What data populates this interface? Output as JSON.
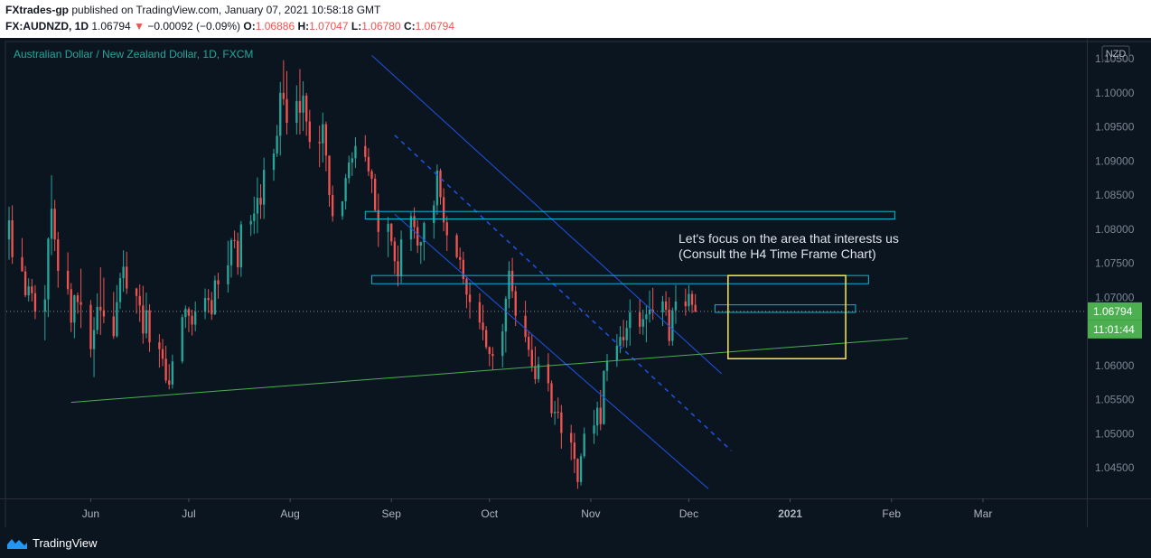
{
  "header": {
    "author": "FXtrades-gp",
    "published": "published on TradingView.com, January 07, 2021 10:58:18 GMT",
    "symbol": "FX:AUDNZD, 1D",
    "last": "1.06794",
    "change_arrow": "▼",
    "change": "−0.00092 (−0.09%)",
    "o_label": "O:",
    "o_val": "1.06886",
    "h_label": "H:",
    "h_val": "1.07047",
    "l_label": "L:",
    "l_val": "1.06780",
    "c_label": "C:",
    "c_val": "1.06794"
  },
  "chart_title": "Australian Dollar / New Zealand Dollar, 1D, FXCM",
  "footer": {
    "brand": "TradingView",
    "logo_icon": "tradingview-logo-icon"
  },
  "colors": {
    "background": "#0a1520",
    "bull": "#26a69a",
    "bear": "#ef5350",
    "channel": "#1e53e5",
    "trend": "#4caf50",
    "zone": "#00bcd4",
    "focus_box": "#ffeb3b"
  },
  "chart_data": {
    "type": "candlestick",
    "title": "Australian Dollar / New Zealand Dollar, 1D, FXCM",
    "currency_label": "NZD",
    "xlabel": "",
    "ylabel": "",
    "ylim": [
      1.0405,
      1.1074
    ],
    "x_ticks": [
      "Jun",
      "Jul",
      "Aug",
      "Sep",
      "Oct",
      "Nov",
      "Dec",
      "2021",
      "Feb",
      "Mar"
    ],
    "y_ticks": [
      "1.04500",
      "1.05000",
      "1.05500",
      "1.06000",
      "1.06500",
      "1.07000",
      "1.07500",
      "1.08000",
      "1.08500",
      "1.09000",
      "1.09500",
      "1.10000",
      "1.10500"
    ],
    "grid": false,
    "last_price": "1.06794",
    "countdown": "11:01:44",
    "annotation": [
      "Let's focus on the area that interests us",
      "(Consult the H4 Time Frame Chart)"
    ],
    "date_anchor": {
      "first_bar_date": "2020-05-07"
    },
    "candles": [
      [
        1.0785,
        1.0833,
        1.0755,
        1.0813
      ],
      [
        1.0813,
        1.0835,
        1.0749,
        1.0759
      ],
      [
        1.0759,
        1.0787,
        1.0738,
        1.0738
      ],
      [
        1.0738,
        1.0746,
        1.07,
        1.0703
      ],
      [
        1.0703,
        1.0728,
        1.0694,
        1.0716
      ],
      [
        1.0716,
        1.0727,
        1.0694,
        1.0706
      ],
      [
        1.0706,
        1.0718,
        1.0668,
        1.0679
      ],
      [
        1.0679,
        1.0718,
        1.0637,
        1.0697
      ],
      [
        1.0697,
        1.0788,
        1.0671,
        1.0786
      ],
      [
        1.0786,
        1.0879,
        1.0762,
        1.083
      ],
      [
        1.083,
        1.0843,
        1.0768,
        1.0785
      ],
      [
        1.0785,
        1.0796,
        1.0714,
        1.0739
      ],
      [
        1.0739,
        1.0766,
        1.0704,
        1.0712
      ],
      [
        1.0712,
        1.0721,
        1.0649,
        1.0663
      ],
      [
        1.0663,
        1.0704,
        1.064,
        1.0703
      ],
      [
        1.0703,
        1.0707,
        1.0676,
        1.0693
      ],
      [
        1.0693,
        1.0742,
        1.0655,
        1.0689
      ],
      [
        1.0689,
        1.0696,
        1.0612,
        1.0624
      ],
      [
        1.0624,
        1.0671,
        1.0583,
        1.0652
      ],
      [
        1.0652,
        1.0706,
        1.0646,
        1.0686
      ],
      [
        1.0686,
        1.0744,
        1.0645,
        1.0681
      ],
      [
        1.0681,
        1.0729,
        1.0662,
        1.0672
      ],
      [
        1.0672,
        1.0708,
        1.0639,
        1.0643
      ],
      [
        1.0643,
        1.0718,
        1.0641,
        1.0693
      ],
      [
        1.0693,
        1.0736,
        1.0683,
        1.0728
      ],
      [
        1.0728,
        1.0769,
        1.0708,
        1.0745
      ],
      [
        1.0745,
        1.0767,
        1.0705,
        1.0713
      ],
      [
        1.0713,
        1.0714,
        1.0676,
        1.0702
      ],
      [
        1.0702,
        1.0719,
        1.0664,
        1.0688
      ],
      [
        1.0688,
        1.0717,
        1.0632,
        1.0647
      ],
      [
        1.0647,
        1.0707,
        1.064,
        1.0681
      ],
      [
        1.0681,
        1.069,
        1.062,
        1.0634
      ],
      [
        1.0634,
        1.0646,
        1.0597,
        1.0624
      ],
      [
        1.0624,
        1.0639,
        1.0599,
        1.061
      ],
      [
        1.061,
        1.0629,
        1.0574,
        1.0578
      ],
      [
        1.0578,
        1.0602,
        1.0565,
        1.0572
      ],
      [
        1.0572,
        1.0616,
        1.0566,
        1.0606
      ],
      [
        1.0606,
        1.0675,
        1.0603,
        1.0671
      ],
      [
        1.0671,
        1.0688,
        1.0655,
        1.0683
      ],
      [
        1.0683,
        1.0686,
        1.0649,
        1.0673
      ],
      [
        1.0673,
        1.0682,
        1.0644,
        1.066
      ],
      [
        1.066,
        1.0694,
        1.065,
        1.0679
      ],
      [
        1.0679,
        1.0713,
        1.0668,
        1.0699
      ],
      [
        1.0699,
        1.0712,
        1.0677,
        1.0696
      ],
      [
        1.0696,
        1.0708,
        1.0667,
        1.0675
      ],
      [
        1.0675,
        1.0732,
        1.0674,
        1.0725
      ],
      [
        1.0725,
        1.0736,
        1.0698,
        1.0719
      ],
      [
        1.0719,
        1.0783,
        1.0707,
        1.0747
      ],
      [
        1.0747,
        1.0787,
        1.0729,
        1.0784
      ],
      [
        1.0784,
        1.0798,
        1.0772,
        1.0783
      ],
      [
        1.0783,
        1.0795,
        1.0733,
        1.0744
      ],
      [
        1.0744,
        1.0812,
        1.073,
        1.0807
      ],
      [
        1.0807,
        1.0821,
        1.079,
        1.0812
      ],
      [
        1.0812,
        1.0848,
        1.0793,
        1.0823
      ],
      [
        1.0823,
        1.0876,
        1.0794,
        1.0846
      ],
      [
        1.0846,
        1.0866,
        1.0815,
        1.0836
      ],
      [
        1.0836,
        1.0905,
        1.0815,
        1.0887
      ],
      [
        1.0887,
        1.0918,
        1.0871,
        1.0911
      ],
      [
        1.0911,
        1.0953,
        1.0906,
        1.0937
      ],
      [
        1.0937,
        1.1016,
        1.0908,
        1.1
      ],
      [
        1.1,
        1.1048,
        1.0982,
        1.0991
      ],
      [
        1.0991,
        1.1032,
        1.0939,
        1.0956
      ],
      [
        1.0956,
        1.1011,
        1.0939,
        1.0988
      ],
      [
        1.0988,
        1.1035,
        1.0939,
        1.0971
      ],
      [
        1.0971,
        1.1017,
        1.0944,
        1.0996
      ],
      [
        1.0996,
        1.1,
        1.0937,
        1.0958
      ],
      [
        1.0958,
        1.0975,
        1.0918,
        1.0928
      ],
      [
        1.0928,
        1.0952,
        1.0891,
        1.0926
      ],
      [
        1.0926,
        1.0971,
        1.0898,
        1.0954
      ],
      [
        1.0954,
        1.0958,
        1.0885,
        1.0908
      ],
      [
        1.0908,
        1.0908,
        1.0833,
        1.085
      ],
      [
        1.085,
        1.0864,
        1.0811,
        1.0819
      ],
      [
        1.0819,
        1.0841,
        1.0814,
        1.0841
      ],
      [
        1.0841,
        1.0881,
        1.0829,
        1.0875
      ],
      [
        1.0875,
        1.0908,
        1.0867,
        1.0898
      ],
      [
        1.0898,
        1.0913,
        1.0878,
        1.0904
      ],
      [
        1.0904,
        1.0935,
        1.089,
        1.0922
      ],
      [
        1.0922,
        1.0938,
        1.0899,
        1.0906
      ],
      [
        1.0906,
        1.0919,
        1.0878,
        1.0885
      ],
      [
        1.0885,
        1.0888,
        1.0853,
        1.0874
      ],
      [
        1.0874,
        1.0881,
        1.0825,
        1.0828
      ],
      [
        1.0828,
        1.0852,
        1.0774,
        1.0796
      ],
      [
        1.0796,
        1.0818,
        1.0759,
        1.0808
      ],
      [
        1.0808,
        1.0809,
        1.0776,
        1.0782
      ],
      [
        1.0782,
        1.0788,
        1.0734,
        1.0753
      ],
      [
        1.0753,
        1.0776,
        1.0716,
        1.0731
      ],
      [
        1.0731,
        1.0798,
        1.0721,
        1.0785
      ],
      [
        1.0785,
        1.0825,
        1.0768,
        1.0819
      ],
      [
        1.0819,
        1.0832,
        1.0786,
        1.0803
      ],
      [
        1.0803,
        1.0813,
        1.0765,
        1.0776
      ],
      [
        1.0776,
        1.0782,
        1.0749,
        1.0781
      ],
      [
        1.0781,
        1.0811,
        1.0754,
        1.0809
      ],
      [
        1.0809,
        1.0842,
        1.0786,
        1.0835
      ],
      [
        1.0835,
        1.0895,
        1.0821,
        1.0886
      ],
      [
        1.0886,
        1.0889,
        1.0836,
        1.0847
      ],
      [
        1.0847,
        1.086,
        1.0797,
        1.081
      ],
      [
        1.081,
        1.0819,
        1.0768,
        1.0791
      ],
      [
        1.0791,
        1.0794,
        1.0757,
        1.0759
      ],
      [
        1.0759,
        1.0773,
        1.0741,
        1.0755
      ],
      [
        1.0755,
        1.0767,
        1.0719,
        1.0727
      ],
      [
        1.0727,
        1.073,
        1.0684,
        1.0704
      ],
      [
        1.0704,
        1.0722,
        1.0669,
        1.0693
      ],
      [
        1.0693,
        1.0706,
        1.0653,
        1.0663
      ],
      [
        1.0663,
        1.0689,
        1.0637,
        1.0652
      ],
      [
        1.0652,
        1.0658,
        1.0624,
        1.0627
      ],
      [
        1.0627,
        1.0628,
        1.0599,
        1.0617
      ],
      [
        1.0617,
        1.0627,
        1.0594,
        1.0614
      ],
      [
        1.0614,
        1.0661,
        1.0597,
        1.065
      ],
      [
        1.065,
        1.0702,
        1.0619,
        1.0698
      ],
      [
        1.0698,
        1.0753,
        1.0684,
        1.0739
      ],
      [
        1.0739,
        1.0758,
        1.0699,
        1.0709
      ],
      [
        1.0709,
        1.0717,
        1.0658,
        1.0673
      ],
      [
        1.0673,
        1.0695,
        1.0634,
        1.0642
      ],
      [
        1.0642,
        1.0651,
        1.0613,
        1.0623
      ],
      [
        1.0623,
        1.0646,
        1.0591,
        1.0599
      ],
      [
        1.0599,
        1.0628,
        1.0573,
        1.058
      ],
      [
        1.058,
        1.0613,
        1.0575,
        1.0602
      ],
      [
        1.0602,
        1.0618,
        1.0562,
        1.0574
      ],
      [
        1.0574,
        1.0578,
        1.0524,
        1.053
      ],
      [
        1.053,
        1.0548,
        1.0513,
        1.0532
      ],
      [
        1.0532,
        1.0553,
        1.0522,
        1.0531
      ],
      [
        1.0531,
        1.0542,
        1.0478,
        1.0501
      ],
      [
        1.0501,
        1.0513,
        1.0461,
        1.0487
      ],
      [
        1.0487,
        1.0501,
        1.0442,
        1.0463
      ],
      [
        1.0463,
        1.0464,
        1.0419,
        1.0429
      ],
      [
        1.0429,
        1.0471,
        1.0424,
        1.0467
      ],
      [
        1.0467,
        1.0509,
        1.0464,
        1.05
      ],
      [
        1.05,
        1.0535,
        1.0485,
        1.0512
      ],
      [
        1.0512,
        1.0547,
        1.0497,
        1.0538
      ],
      [
        1.0538,
        1.0564,
        1.0505,
        1.0514
      ],
      [
        1.0514,
        1.0593,
        1.0513,
        1.0592
      ],
      [
        1.0592,
        1.0617,
        1.0577,
        1.0607
      ],
      [
        1.0607,
        1.0646,
        1.0598,
        1.0629
      ],
      [
        1.0629,
        1.0658,
        1.0618,
        1.0642
      ],
      [
        1.0642,
        1.0667,
        1.0627,
        1.0637
      ],
      [
        1.0637,
        1.0666,
        1.0626,
        1.0655
      ],
      [
        1.0655,
        1.0697,
        1.0629,
        1.0678
      ],
      [
        1.0678,
        1.0697,
        1.0646,
        1.0657
      ],
      [
        1.0657,
        1.0682,
        1.0645,
        1.0668
      ],
      [
        1.0668,
        1.0689,
        1.0634,
        1.0675
      ],
      [
        1.0675,
        1.071,
        1.0663,
        1.0682
      ],
      [
        1.0682,
        1.0714,
        1.0667,
        1.0678
      ],
      [
        1.0678,
        1.0702,
        1.0658,
        1.0694
      ],
      [
        1.0694,
        1.0709,
        1.0673,
        1.0682
      ],
      [
        1.0682,
        1.07,
        1.0629,
        1.0636
      ],
      [
        1.0636,
        1.0685,
        1.0629,
        1.0681
      ],
      [
        1.0681,
        1.0718,
        1.0661,
        1.0694
      ],
      [
        1.0694,
        1.0713,
        1.0673,
        1.0687
      ],
      [
        1.0687,
        1.0718,
        1.068,
        1.0705
      ],
      [
        1.0705,
        1.071,
        1.0677,
        1.0689
      ],
      [
        1.0689,
        1.0705,
        1.0678,
        1.0679
      ]
    ],
    "drawings": {
      "channel_upper": [
        [
          1.1055,
          "2020-08-26"
        ],
        [
          1.0588,
          "2020-12-11"
        ]
      ],
      "channel_lower": [
        [
          1.0822,
          "2020-09-02"
        ],
        [
          1.0419,
          "2020-12-07"
        ]
      ],
      "channel_mid_dashed": [
        [
          1.0938,
          "2020-09-02"
        ],
        [
          1.0475,
          "2020-12-14"
        ]
      ],
      "trendline": [
        [
          1.0546,
          "2020-05-26"
        ],
        [
          1.064,
          "2021-02-06"
        ]
      ],
      "zone_1": [
        [
          1.0826,
          1.0815
        ],
        [
          "2020-08-24",
          "2021-02-02"
        ]
      ],
      "zone_2": [
        [
          1.0732,
          1.072
        ],
        [
          "2020-08-26",
          "2021-01-25"
        ]
      ],
      "zone_3": [
        [
          1.0689,
          1.0678
        ],
        [
          "2020-12-09",
          "2021-01-21"
        ]
      ],
      "focus_box": [
        [
          1.0732,
          1.061
        ],
        [
          "2020-12-13",
          "2021-01-18"
        ]
      ]
    }
  }
}
